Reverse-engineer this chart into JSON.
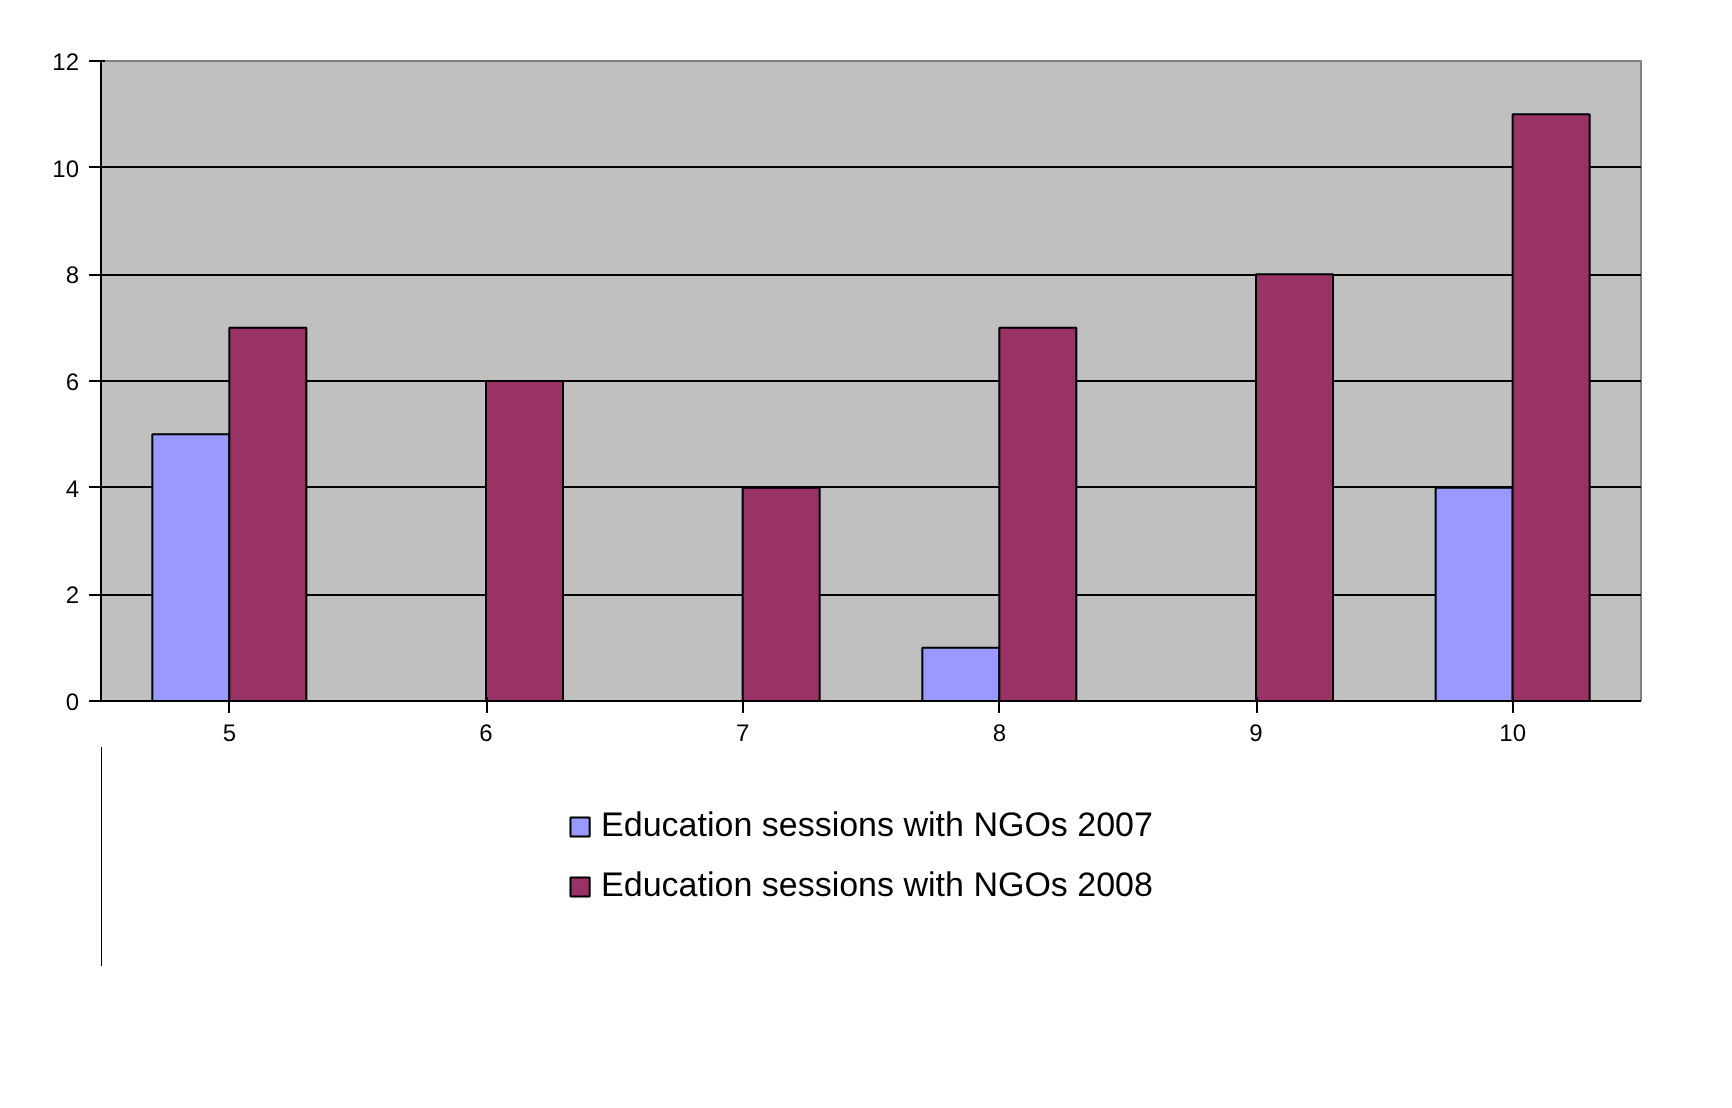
{
  "chart_data": {
    "type": "bar",
    "categories": [
      "5",
      "6",
      "7",
      "8",
      "9",
      "10"
    ],
    "series": [
      {
        "name": "Education sessions with NGOs 2007",
        "color": "#9999ff",
        "values": [
          5,
          null,
          null,
          1,
          null,
          4
        ]
      },
      {
        "name": "Education sessions with NGOs 2008",
        "color": "#993366",
        "values": [
          7,
          6,
          4,
          7,
          8,
          11
        ]
      }
    ],
    "ylim": [
      0,
      12
    ],
    "yticks": [
      0,
      2,
      4,
      6,
      8,
      10,
      12
    ],
    "grid": "y",
    "legend": "bottom"
  }
}
